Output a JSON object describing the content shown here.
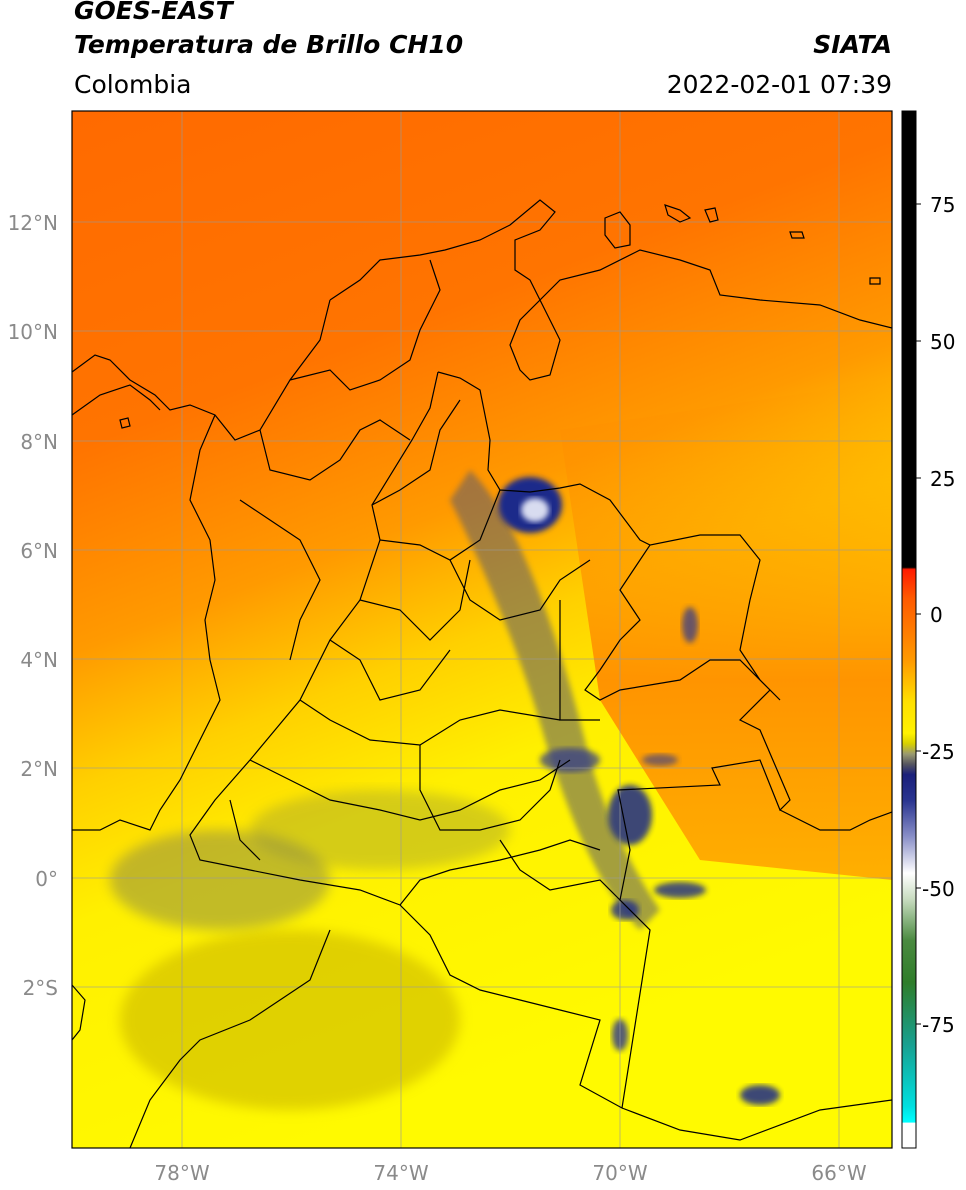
{
  "header": {
    "line1": "GOES-EAST",
    "line2": "Temperatura de Brillo CH10",
    "region": "Colombia",
    "agency": "SIATA",
    "datetime": "2022-02-01 07:39"
  },
  "map": {
    "lat_labels": [
      "12°N",
      "10°N",
      "8°N",
      "6°N",
      "4°N",
      "2°N",
      "0°",
      "2°S"
    ],
    "lat_values": [
      12,
      10,
      8,
      6,
      4,
      2,
      0,
      -2
    ],
    "lon_labels": [
      "78°W",
      "74°W",
      "70°W",
      "66°W"
    ],
    "lon_values": [
      -78,
      -74,
      -70,
      -66
    ],
    "lon_range": [
      -80,
      -65
    ],
    "lat_range": [
      -4.3,
      14
    ],
    "gridlines": true
  },
  "colorbar": {
    "tick_labels": [
      "75",
      "50",
      "25",
      "0",
      "-25",
      "-50",
      "-75"
    ],
    "tick_values": [
      75,
      50,
      25,
      0,
      -25,
      -50,
      -75
    ],
    "range": [
      -100,
      90
    ],
    "colors": {
      "black": "#000000",
      "red": "#ff1a00",
      "orange": "#ff7a00",
      "yellow": "#ffee00",
      "navy": "#1a1f7a",
      "white": "#ffffff",
      "green": "#2f7d2a",
      "teal": "#18b8a0",
      "cyan": "#00ffff"
    }
  },
  "colors": {
    "map_orange": "#ff7a00",
    "map_yellow": "#fff200",
    "cloud_blue": "#1f2a8a",
    "border": "#000000",
    "grid": "#9a9a9a"
  }
}
